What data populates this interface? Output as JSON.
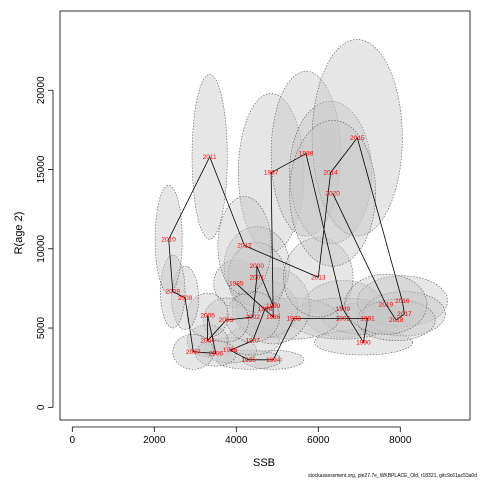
{
  "chart_data": {
    "type": "scatter",
    "title": "",
    "xlabel": "SSB",
    "ylabel": "R(age 2)",
    "xlim": [
      -300,
      9700
    ],
    "ylim": [
      -800,
      25000
    ],
    "xticks": [
      0,
      2000,
      4000,
      6000,
      8000
    ],
    "yticks": [
      0,
      5000,
      10000,
      15000,
      20000
    ],
    "grid": false,
    "legend": "none",
    "points": [
      {
        "year": "1985",
        "x": 4000,
        "y": 7800,
        "rx": 550,
        "ry": 1500
      },
      {
        "year": "1986",
        "x": 4900,
        "y": 5700,
        "rx": 500,
        "ry": 1300
      },
      {
        "year": "1987",
        "x": 4850,
        "y": 14800,
        "rx": 800,
        "ry": 5000
      },
      {
        "year": "1988",
        "x": 5700,
        "y": 16000,
        "rx": 850,
        "ry": 5200
      },
      {
        "year": "1989",
        "x": 6600,
        "y": 6200,
        "rx": 1000,
        "ry": 1800
      },
      {
        "year": "1990",
        "x": 7100,
        "y": 4100,
        "rx": 1200,
        "ry": 800
      },
      {
        "year": "1991",
        "x": 7200,
        "y": 5600,
        "rx": 1100,
        "ry": 1000
      },
      {
        "year": "1992",
        "x": 6600,
        "y": 5600,
        "rx": 1300,
        "ry": 1300
      },
      {
        "year": "1993",
        "x": 5400,
        "y": 5600,
        "rx": 1100,
        "ry": 1300
      },
      {
        "year": "1994",
        "x": 4900,
        "y": 3000,
        "rx": 750,
        "ry": 600
      },
      {
        "year": "1995",
        "x": 4300,
        "y": 3000,
        "rx": 800,
        "ry": 600
      },
      {
        "year": "1996",
        "x": 3850,
        "y": 3600,
        "rx": 650,
        "ry": 800
      },
      {
        "year": "1997",
        "x": 4400,
        "y": 4200,
        "rx": 650,
        "ry": 900
      },
      {
        "year": "1998",
        "x": 4700,
        "y": 6200,
        "rx": 800,
        "ry": 1800
      },
      {
        "year": "1999",
        "x": 4900,
        "y": 6400,
        "rx": 900,
        "ry": 2400
      },
      {
        "year": "2000",
        "x": 4500,
        "y": 8900,
        "rx": 800,
        "ry": 2500
      },
      {
        "year": "2001",
        "x": 4500,
        "y": 8200,
        "rx": 700,
        "ry": 2200
      },
      {
        "year": "2002",
        "x": 4400,
        "y": 5700,
        "rx": 650,
        "ry": 1600
      },
      {
        "year": "2003",
        "x": 3750,
        "y": 5500,
        "rx": 550,
        "ry": 1400
      },
      {
        "year": "2004",
        "x": 3300,
        "y": 4200,
        "rx": 500,
        "ry": 1000
      },
      {
        "year": "2005",
        "x": 3300,
        "y": 5800,
        "rx": 500,
        "ry": 1400
      },
      {
        "year": "2006",
        "x": 3500,
        "y": 3400,
        "rx": 500,
        "ry": 800
      },
      {
        "year": "2007",
        "x": 2950,
        "y": 3500,
        "rx": 500,
        "ry": 1100
      },
      {
        "year": "2008",
        "x": 2750,
        "y": 6900,
        "rx": 330,
        "ry": 2000
      },
      {
        "year": "2009",
        "x": 2450,
        "y": 7300,
        "rx": 300,
        "ry": 2300
      },
      {
        "year": "2010",
        "x": 2350,
        "y": 10600,
        "rx": 330,
        "ry": 3400
      },
      {
        "year": "2011",
        "x": 3350,
        "y": 15800,
        "rx": 430,
        "ry": 5200
      },
      {
        "year": "2012",
        "x": 4200,
        "y": 10200,
        "rx": 650,
        "ry": 3100
      },
      {
        "year": "2013",
        "x": 6000,
        "y": 8200,
        "rx": 850,
        "ry": 2500
      },
      {
        "year": "2014",
        "x": 6300,
        "y": 14800,
        "rx": 1000,
        "ry": 4500
      },
      {
        "year": "2015",
        "x": 6950,
        "y": 17000,
        "rx": 1100,
        "ry": 6200
      },
      {
        "year": "2016",
        "x": 8050,
        "y": 6700,
        "rx": 1100,
        "ry": 1600
      },
      {
        "year": "2017",
        "x": 8100,
        "y": 5900,
        "rx": 1000,
        "ry": 1400
      },
      {
        "year": "2018",
        "x": 7900,
        "y": 5500,
        "rx": 950,
        "ry": 1300
      },
      {
        "year": "2019",
        "x": 7650,
        "y": 6500,
        "rx": 1000,
        "ry": 1900
      },
      {
        "year": "2020",
        "x": 6350,
        "y": 13500,
        "rx": 1050,
        "ry": 4600
      }
    ],
    "label_color": "#ff0000",
    "line_color": "#000000",
    "ellipse_fill": "#c8c8c8",
    "ellipse_stroke": "#555555"
  },
  "footer": {
    "text": "stockassessment.org, ple27.7e_WKBPLACE_Old, r18321, gitc9c61ac53a0d"
  }
}
